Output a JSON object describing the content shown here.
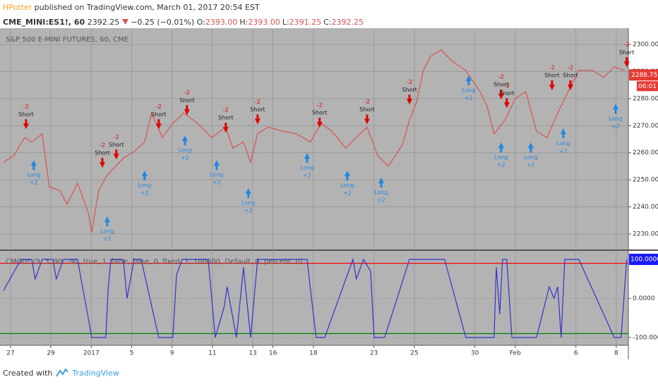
{
  "header": {
    "author": "HPotter",
    "published": "published on TradingView.com, March 01, 2017 20:54 EST",
    "symbol": "CME_MINI:ES1!, 60",
    "price": "2392.25",
    "change": "−0.25 (−0.01%)",
    "ohlc": [
      {
        "key": "O:",
        "value": "2393.00"
      },
      {
        "key": "H:",
        "value": "2393.00"
      },
      {
        "key": "L:",
        "value": "2391.25"
      },
      {
        "key": "C:",
        "value": "2392.25"
      }
    ]
  },
  "footer": {
    "created": "Created with",
    "brand": "TradingView"
  },
  "chart_data": [
    {
      "type": "line",
      "title": "S&P 500 E-MINI FUTURES, 60, CME",
      "color": "#d9534f",
      "grid": true,
      "xlim": [
        -0.52,
        30.6
      ],
      "ylim": [
        2224,
        2305.5
      ],
      "yticks": [
        {
          "value": 2230,
          "label": "2230.00"
        },
        {
          "value": 2240,
          "label": "2240.00"
        },
        {
          "value": 2250,
          "label": "2250.00"
        },
        {
          "value": 2260,
          "label": "2260.00"
        },
        {
          "value": 2270,
          "label": "2270.00"
        },
        {
          "value": 2280,
          "label": "2280.00"
        },
        {
          "value": 2290,
          "label": "2290.00"
        },
        {
          "value": 2300,
          "label": "2300.00"
        }
      ],
      "last_price": {
        "value": 2288.75,
        "label": "2288.75"
      },
      "countdown": "06:01",
      "x": [
        -0.35,
        0.17,
        0.7,
        1.05,
        1.57,
        1.92,
        2.45,
        2.8,
        3.32,
        3.85,
        4.02,
        4.37,
        4.72,
        5.07,
        5.59,
        6.12,
        6.64,
        6.99,
        7.52,
        8.04,
        8.57,
        9.27,
        9.97,
        10.66,
        11.01,
        11.54,
        11.89,
        12.24,
        12.76,
        13.46,
        14.16,
        14.86,
        15.38,
        15.91,
        16.61,
        17.31,
        17.66,
        18.18,
        18.71,
        19.41,
        19.76,
        20.1,
        20.45,
        20.8,
        21.33,
        21.85,
        22.55,
        23.25,
        23.6,
        23.95,
        24.48,
        25,
        25.52,
        26.05,
        26.57,
        27.1,
        27.62,
        28.15,
        28.85,
        29.37,
        29.9,
        30.42
      ],
      "values": [
        2256.5,
        2259,
        2265.6,
        2264,
        2267,
        2247.4,
        2246,
        2241,
        2248.7,
        2238,
        2230.5,
        2246,
        2251,
        2254,
        2258,
        2260.4,
        2264,
        2274.7,
        2265.6,
        2270.8,
        2274.7,
        2270.8,
        2265.6,
        2269.5,
        2261.7,
        2264,
        2256.5,
        2267,
        2269.5,
        2268,
        2267,
        2264,
        2270.8,
        2268,
        2261.7,
        2267,
        2269.5,
        2259,
        2255,
        2263,
        2272,
        2278.6,
        2290.4,
        2295.6,
        2298,
        2294,
        2290.4,
        2282.6,
        2277.3,
        2267,
        2272,
        2280,
        2282.6,
        2268,
        2265.6,
        2274.7,
        2282.6,
        2290.4,
        2290.4,
        2287.8,
        2291.7,
        2290.4
      ],
      "signals": [
        {
          "side": "Short",
          "qty": "-2",
          "x": 0.77,
          "y": 2268.2
        },
        {
          "side": "Short",
          "qty": "-2",
          "x": 4.55,
          "y": 2253.9
        },
        {
          "side": "Short",
          "qty": "-2",
          "x": 5.24,
          "y": 2257
        },
        {
          "side": "Short",
          "qty": "-2",
          "x": 7.34,
          "y": 2268.2
        },
        {
          "side": "Short",
          "qty": "-2",
          "x": 8.74,
          "y": 2273.4
        },
        {
          "side": "Short",
          "qty": "-2",
          "x": 10.66,
          "y": 2266.9
        },
        {
          "side": "Short",
          "qty": "-2",
          "x": 12.24,
          "y": 2270
        },
        {
          "side": "Short",
          "qty": "-2",
          "x": 15.31,
          "y": 2268.8
        },
        {
          "side": "Short",
          "qty": "-2",
          "x": 17.66,
          "y": 2270
        },
        {
          "side": "Short",
          "qty": "-2",
          "x": 19.76,
          "y": 2277.3
        },
        {
          "side": "Short",
          "qty": "-2",
          "x": 24.3,
          "y": 2279.2
        },
        {
          "side": "Short",
          "qty": "-2",
          "x": 24.58,
          "y": 2276
        },
        {
          "side": "Short",
          "qty": "-2",
          "x": 26.82,
          "y": 2282.6
        },
        {
          "side": "Short",
          "qty": "-2",
          "x": 27.73,
          "y": 2282.6
        },
        {
          "side": "Short",
          "qty": "-2",
          "x": 30.52,
          "y": 2291.1
        },
        {
          "side": "Long",
          "qty": "+2",
          "x": 1.15,
          "y": 2257.8
        },
        {
          "side": "Long",
          "qty": "+2",
          "x": 4.79,
          "y": 2237
        },
        {
          "side": "Long",
          "qty": "+2",
          "x": 6.64,
          "y": 2253.9
        },
        {
          "side": "Long",
          "qty": "+2",
          "x": 8.64,
          "y": 2266.9
        },
        {
          "side": "Long",
          "qty": "+2",
          "x": 10.21,
          "y": 2257.8
        },
        {
          "side": "Long",
          "qty": "+2",
          "x": 11.78,
          "y": 2247.4
        },
        {
          "side": "Long",
          "qty": "+2",
          "x": 14.69,
          "y": 2260.4
        },
        {
          "side": "Long",
          "qty": "+2",
          "x": 16.68,
          "y": 2253.9
        },
        {
          "side": "Long",
          "qty": "+2",
          "x": 18.36,
          "y": 2251.3
        },
        {
          "side": "Long",
          "qty": "+2",
          "x": 22.69,
          "y": 2289.1
        },
        {
          "side": "Long",
          "qty": "+2",
          "x": 24.3,
          "y": 2264.3
        },
        {
          "side": "Long",
          "qty": "+2",
          "x": 25.77,
          "y": 2264.3
        },
        {
          "side": "Long",
          "qty": "+2",
          "x": 27.38,
          "y": 2269.5
        },
        {
          "side": "Long",
          "qty": "+2",
          "x": 29.97,
          "y": 2278.6
        }
      ]
    },
    {
      "type": "line",
      "title": "CMOtrt (9, 3, 90, -90, true, 1, false, false, 0, fixed, 1, 100000, Default, 0, percent, 0)",
      "color": "#3333cc",
      "grid": true,
      "xlim": [
        -0.52,
        30.6
      ],
      "ylim": [
        -120,
        120
      ],
      "yticks": [
        {
          "value": 0,
          "label": "0.0000"
        },
        {
          "value": -100,
          "label": "-100.0000"
        }
      ],
      "last_value": {
        "value": 100,
        "label": "100.0000"
      },
      "levels": [
        {
          "value": 90,
          "color": "#ff0000"
        },
        {
          "value": -90,
          "color": "#008000"
        }
      ],
      "xticks": [
        {
          "value": 0,
          "label": "27"
        },
        {
          "value": 2,
          "label": "29"
        },
        {
          "value": 4,
          "label": "2017"
        },
        {
          "value": 6,
          "label": "5"
        },
        {
          "value": 8,
          "label": "9"
        },
        {
          "value": 10,
          "label": "11"
        },
        {
          "value": 12,
          "label": "13"
        },
        {
          "value": 13,
          "label": "16"
        },
        {
          "value": 15,
          "label": "18"
        },
        {
          "value": 18,
          "label": "23"
        },
        {
          "value": 20,
          "label": "25"
        },
        {
          "value": 23,
          "label": "30"
        },
        {
          "value": 25,
          "label": "Feb"
        },
        {
          "value": 28,
          "label": "6"
        },
        {
          "value": 30,
          "label": "8"
        }
      ],
      "x": [
        -0.35,
        0.52,
        1.05,
        1.22,
        1.57,
        1.75,
        2.1,
        2.27,
        2.62,
        2.97,
        3.32,
        3.85,
        4.02,
        4.72,
        4.83,
        4.97,
        5.59,
        5.77,
        6.12,
        6.47,
        6.82,
        7.34,
        8.04,
        8.22,
        8.5,
        9.79,
        10.14,
        10.59,
        10.73,
        10.87,
        11.19,
        11.54,
        11.89,
        12.24,
        14.69,
        14.86,
        15.14,
        15.56,
        16.96,
        17.13,
        17.48,
        17.83,
        18.01,
        18.53,
        19.76,
        21.5,
        22.55,
        23.95,
        24.06,
        24.23,
        24.37,
        24.58,
        24.83,
        26.05,
        26.68,
        26.92,
        27.1,
        27.27,
        27.45,
        28.15,
        29.9,
        30.24,
        30.52
      ],
      "values": [
        20,
        100,
        100,
        50,
        100,
        100,
        100,
        50,
        100,
        100,
        100,
        -50,
        -100,
        -100,
        20,
        100,
        100,
        0,
        100,
        100,
        20,
        -100,
        -100,
        60,
        100,
        100,
        -100,
        -20,
        30,
        -10,
        -100,
        80,
        -100,
        100,
        100,
        20,
        -100,
        -100,
        100,
        50,
        100,
        70,
        -100,
        -100,
        100,
        100,
        -100,
        -100,
        80,
        -40,
        100,
        100,
        -100,
        -100,
        30,
        0,
        30,
        -100,
        100,
        100,
        -100,
        -100,
        100
      ]
    }
  ]
}
